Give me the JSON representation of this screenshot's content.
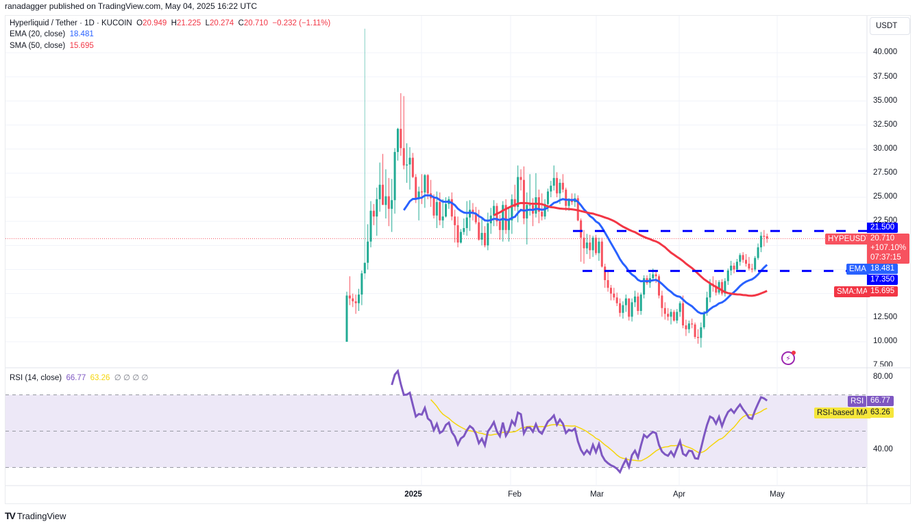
{
  "header": {
    "published": "ranadagger published on TradingView.com, May 04, 2025 16:22 UTC"
  },
  "legend": {
    "symbol": "Hyperliquid / Tether · 1D · KUCOIN",
    "o_label": "O",
    "o": "20.949",
    "h_label": "H",
    "h": "21.225",
    "l_label": "L",
    "l": "20.274",
    "c_label": "C",
    "c": "20.710",
    "change": "−0.232 (−1.11%)",
    "ema_label": "EMA (20, close)",
    "ema_value": "18.481",
    "sma_label": "SMA (50, close)",
    "sma_value": "15.695",
    "rsi_label": "RSI (14, close)",
    "rsi_value": "66.77",
    "rsi_ma_value": "63.26",
    "rsi_extra": "∅ ∅ ∅ ∅"
  },
  "currency_button": "USDT",
  "price_axis": {
    "ticks": [
      "40.000",
      "37.500",
      "35.000",
      "32.500",
      "30.000",
      "27.500",
      "25.000",
      "22.500",
      "12.500",
      "10.000",
      "7.500"
    ]
  },
  "rsi_axis": {
    "ticks": [
      "80.00",
      "40.00"
    ]
  },
  "time_axis": {
    "ticks": [
      "2025",
      "Feb",
      "Mar",
      "Apr",
      "May"
    ]
  },
  "tags": {
    "resistance": "21.500",
    "symbol_name": "HYPEUSDT",
    "last_price": "20.710",
    "last_change": "+107.10%",
    "countdown": "07:37:15",
    "ema_name": "EMA",
    "ema_value": "18.481",
    "support": "17.350",
    "sma_name": "SMA:MA",
    "sma_value": "15.695",
    "rsi_name": "RSI",
    "rsi_value": "66.77",
    "rsi_ma_name": "RSI-based MA",
    "rsi_ma_value": "63.26"
  },
  "branding": {
    "logo_text": "TradingView",
    "logo_mark": "TV"
  },
  "colors": {
    "up": "#22ab94",
    "down": "#f7525f",
    "ema": "#2962ff",
    "sma": "#f23645",
    "level": "#0000ff",
    "rsi": "#7e57c2",
    "rsi_ma": "#f5d50b",
    "rsi_band": "#ede8f7"
  },
  "chart_data": {
    "type": "candlestick",
    "title": "Hyperliquid / Tether · 1D · KUCOIN",
    "xlabel": "",
    "ylabel": "USDT",
    "ylim": [
      7.5,
      42
    ],
    "x_ticks": [
      "2025",
      "Feb",
      "Mar",
      "Apr",
      "May"
    ],
    "horizontal_levels": [
      {
        "name": "resistance",
        "value": 21.5
      },
      {
        "name": "support",
        "value": 17.35
      }
    ],
    "last": {
      "open": 20.949,
      "high": 21.225,
      "low": 20.274,
      "close": 20.71,
      "change": -0.232,
      "change_pct": -1.11
    },
    "candles_ohlc": [
      [
        10.0,
        15.2,
        10.0,
        14.8
      ],
      [
        14.8,
        16.8,
        13.8,
        14.5
      ],
      [
        14.5,
        15.0,
        13.6,
        14.2
      ],
      [
        14.2,
        14.9,
        12.9,
        14.0
      ],
      [
        14.0,
        15.5,
        13.2,
        14.9
      ],
      [
        14.9,
        17.4,
        13.8,
        17.1
      ],
      [
        17.1,
        42.5,
        16.5,
        18.2
      ],
      [
        18.2,
        22.2,
        17.5,
        20.4
      ],
      [
        20.4,
        24.6,
        19.8,
        23.6
      ],
      [
        23.6,
        24.3,
        22.1,
        23.0
      ],
      [
        23.0,
        26.0,
        21.0,
        24.8
      ],
      [
        24.8,
        28.6,
        23.5,
        26.3
      ],
      [
        26.3,
        29.5,
        24.9,
        24.2
      ],
      [
        24.2,
        27.9,
        22.8,
        25.1
      ],
      [
        25.1,
        27.0,
        22.0,
        23.8
      ],
      [
        23.8,
        26.9,
        21.4,
        24.7
      ],
      [
        24.7,
        30.1,
        23.3,
        29.7
      ],
      [
        29.7,
        32.2,
        28.8,
        32.1
      ],
      [
        32.1,
        35.8,
        29.3,
        30.1
      ],
      [
        30.1,
        35.5,
        27.9,
        28.3
      ],
      [
        28.3,
        30.6,
        26.5,
        28.4
      ],
      [
        28.4,
        30.2,
        25.8,
        29.1
      ],
      [
        29.1,
        29.6,
        27.0,
        27.1
      ],
      [
        27.1,
        27.4,
        24.4,
        24.9
      ],
      [
        24.9,
        26.1,
        22.6,
        25.6
      ],
      [
        25.6,
        27.4,
        24.3,
        25.5
      ],
      [
        25.5,
        27.4,
        23.9,
        27.3
      ],
      [
        27.3,
        27.4,
        24.8,
        25.4
      ],
      [
        25.4,
        26.8,
        24.0,
        24.9
      ],
      [
        24.9,
        25.3,
        22.8,
        23.1
      ],
      [
        23.1,
        25.6,
        21.8,
        24.5
      ],
      [
        24.5,
        25.5,
        22.1,
        22.6
      ],
      [
        22.6,
        24.8,
        21.8,
        23.0
      ],
      [
        23.0,
        25.0,
        22.9,
        24.3
      ],
      [
        24.3,
        25.1,
        23.8,
        24.8
      ],
      [
        24.8,
        25.5,
        22.6,
        23.0
      ],
      [
        23.0,
        23.7,
        20.3,
        22.1
      ],
      [
        22.1,
        23.0,
        19.8,
        20.3
      ],
      [
        20.3,
        21.7,
        20.2,
        21.4
      ],
      [
        21.4,
        22.8,
        21.1,
        21.8
      ],
      [
        21.8,
        24.6,
        21.0,
        22.9
      ],
      [
        22.9,
        24.7,
        21.5,
        23.7
      ],
      [
        23.7,
        24.4,
        22.6,
        23.3
      ],
      [
        23.3,
        24.0,
        22.2,
        22.4
      ],
      [
        22.4,
        23.7,
        20.5,
        20.6
      ],
      [
        20.6,
        22.8,
        20.0,
        21.3
      ],
      [
        21.3,
        22.0,
        19.8,
        20.0
      ],
      [
        20.0,
        23.4,
        19.5,
        22.3
      ],
      [
        22.3,
        23.9,
        21.2,
        23.1
      ],
      [
        23.1,
        24.7,
        22.0,
        24.1
      ],
      [
        24.1,
        24.4,
        22.0,
        22.5
      ],
      [
        22.5,
        23.2,
        20.6,
        21.6
      ],
      [
        21.6,
        24.6,
        20.4,
        24.2
      ],
      [
        24.2,
        24.8,
        21.2,
        21.6
      ],
      [
        21.6,
        23.9,
        20.4,
        22.6
      ],
      [
        22.6,
        25.3,
        21.2,
        24.8
      ],
      [
        24.8,
        26.3,
        23.6,
        24.0
      ],
      [
        24.0,
        28.3,
        22.4,
        27.1
      ],
      [
        27.1,
        27.9,
        25.7,
        26.8
      ],
      [
        26.8,
        28.2,
        22.2,
        22.8
      ],
      [
        22.8,
        25.5,
        20.1,
        24.2
      ],
      [
        24.2,
        27.4,
        23.1,
        24.2
      ],
      [
        24.2,
        24.9,
        22.0,
        23.3
      ],
      [
        23.3,
        27.5,
        22.9,
        25.0
      ],
      [
        25.0,
        25.8,
        22.3,
        23.5
      ],
      [
        23.5,
        25.4,
        22.6,
        23.0
      ],
      [
        23.0,
        24.8,
        22.7,
        24.3
      ],
      [
        24.3,
        25.9,
        23.5,
        25.6
      ],
      [
        25.6,
        26.7,
        25.0,
        26.2
      ],
      [
        26.2,
        28.3,
        25.7,
        27.0
      ],
      [
        27.0,
        27.6,
        25.0,
        25.4
      ],
      [
        25.4,
        26.9,
        24.3,
        26.5
      ],
      [
        26.5,
        27.4,
        25.5,
        25.8
      ],
      [
        25.8,
        26.0,
        23.6,
        24.1
      ],
      [
        24.1,
        24.9,
        23.6,
        24.7
      ],
      [
        24.7,
        25.4,
        24.2,
        24.5
      ],
      [
        24.5,
        25.4,
        24.0,
        24.9
      ],
      [
        24.9,
        25.2,
        22.5,
        22.6
      ],
      [
        22.6,
        22.8,
        18.3,
        20.8
      ],
      [
        20.8,
        21.6,
        18.1,
        19.7
      ],
      [
        19.7,
        21.2,
        19.1,
        20.3
      ],
      [
        20.3,
        21.1,
        18.6,
        19.5
      ],
      [
        19.5,
        21.0,
        18.8,
        20.8
      ],
      [
        20.8,
        21.1,
        19.0,
        19.2
      ],
      [
        19.2,
        20.8,
        18.4,
        20.4
      ],
      [
        20.4,
        20.8,
        17.7,
        17.8
      ],
      [
        17.8,
        18.1,
        15.6,
        16.4
      ],
      [
        16.4,
        17.3,
        15.2,
        15.6
      ],
      [
        15.6,
        15.9,
        14.3,
        15.0
      ],
      [
        15.0,
        15.6,
        14.3,
        14.6
      ],
      [
        14.6,
        15.1,
        13.7,
        14.0
      ],
      [
        14.0,
        14.5,
        12.6,
        13.0
      ],
      [
        13.0,
        14.2,
        12.4,
        13.8
      ],
      [
        13.8,
        14.9,
        13.1,
        14.5
      ],
      [
        14.5,
        14.5,
        12.2,
        12.6
      ],
      [
        12.6,
        14.5,
        12.1,
        14.1
      ],
      [
        14.1,
        15.3,
        13.6,
        14.7
      ],
      [
        14.7,
        15.1,
        12.8,
        13.2
      ],
      [
        13.2,
        15.1,
        12.8,
        14.9
      ],
      [
        14.9,
        16.9,
        14.5,
        16.6
      ],
      [
        16.6,
        16.9,
        15.9,
        16.1
      ],
      [
        16.1,
        17.1,
        15.6,
        16.6
      ],
      [
        16.6,
        17.6,
        16.3,
        17.0
      ],
      [
        17.0,
        17.3,
        16.1,
        16.8
      ],
      [
        16.8,
        17.0,
        14.5,
        14.8
      ],
      [
        14.8,
        15.3,
        12.6,
        13.5
      ],
      [
        13.5,
        14.1,
        12.3,
        12.9
      ],
      [
        12.9,
        13.5,
        12.2,
        12.6
      ],
      [
        12.6,
        13.4,
        11.8,
        13.1
      ],
      [
        13.1,
        13.3,
        12.1,
        12.2
      ],
      [
        12.2,
        13.4,
        11.9,
        13.1
      ],
      [
        13.1,
        14.2,
        12.6,
        14.0
      ],
      [
        14.0,
        14.8,
        11.4,
        11.7
      ],
      [
        11.7,
        12.3,
        10.6,
        11.3
      ],
      [
        11.3,
        12.2,
        10.9,
        11.9
      ],
      [
        11.9,
        12.4,
        11.4,
        11.8
      ],
      [
        11.8,
        12.0,
        10.3,
        10.5
      ],
      [
        10.5,
        11.3,
        9.8,
        10.4
      ],
      [
        10.4,
        12.0,
        9.4,
        11.5
      ],
      [
        11.5,
        13.2,
        11.3,
        13.0
      ],
      [
        13.0,
        15.2,
        12.7,
        14.6
      ],
      [
        14.6,
        16.5,
        14.1,
        16.0
      ],
      [
        16.0,
        16.8,
        15.2,
        15.8
      ],
      [
        15.8,
        16.4,
        14.8,
        15.1
      ],
      [
        15.1,
        16.4,
        14.9,
        16.2
      ],
      [
        16.2,
        16.5,
        14.8,
        15.0
      ],
      [
        15.0,
        16.6,
        14.7,
        16.3
      ],
      [
        16.3,
        17.6,
        15.9,
        17.4
      ],
      [
        17.4,
        18.4,
        16.9,
        17.9
      ],
      [
        17.9,
        18.2,
        17.1,
        17.5
      ],
      [
        17.5,
        18.6,
        17.3,
        18.3
      ],
      [
        18.3,
        19.2,
        17.9,
        19.0
      ],
      [
        19.0,
        19.3,
        18.2,
        18.5
      ],
      [
        18.5,
        19.1,
        17.8,
        18.1
      ],
      [
        18.1,
        18.8,
        17.4,
        17.6
      ],
      [
        17.6,
        18.1,
        17.2,
        17.5
      ],
      [
        17.5,
        18.9,
        17.3,
        18.7
      ],
      [
        18.7,
        20.2,
        18.5,
        19.8
      ],
      [
        19.8,
        21.4,
        19.3,
        21.0
      ],
      [
        21.0,
        21.6,
        19.9,
        20.9
      ],
      [
        20.949,
        21.225,
        20.274,
        20.71
      ]
    ],
    "ema20": {
      "name": "EMA (20, close)",
      "last": 18.481
    },
    "sma50": {
      "name": "SMA (50, close)",
      "last": 15.695
    },
    "rsi": {
      "name": "RSI (14, close)",
      "last": 66.77,
      "ma_last": 63.26,
      "ylim": [
        20,
        90
      ],
      "bands": [
        70,
        50,
        30
      ]
    }
  }
}
